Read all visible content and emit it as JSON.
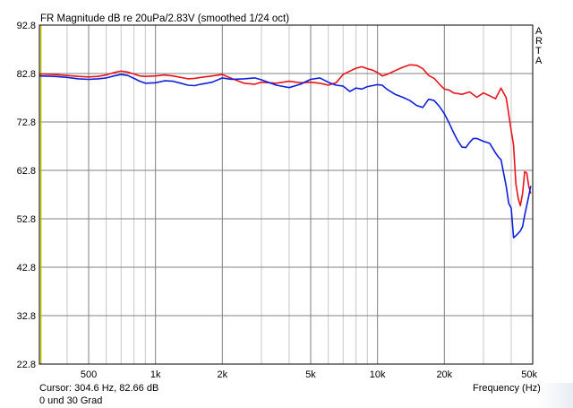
{
  "title": "FR Magnitude dB re 20uPa/2.83V (smoothed 1/24 oct)",
  "cursor_text": "Cursor: 304.6 Hz, 82.66 dB",
  "note_text": "0 und 30 Grad",
  "side_label": [
    "A",
    "R",
    "T",
    "A"
  ],
  "colors": {
    "background": "#ffffff",
    "grid_major": "#808080",
    "grid_minor": "#c8c8c8",
    "series_red": "#e8141a",
    "series_blue": "#1020d8",
    "cursor_line": "#c8c800"
  },
  "chart_data": {
    "type": "line",
    "title": "FR Magnitude dB re 20uPa/2.83V (smoothed 1/24 oct)",
    "xlabel": "Frequency (Hz)",
    "ylabel": "",
    "x_scale": "log",
    "xlim": [
      300,
      50000
    ],
    "ylim": [
      22.8,
      92.8
    ],
    "y_ticks": [
      "92.8",
      "82.8",
      "72.8",
      "62.8",
      "52.8",
      "42.8",
      "32.8",
      "22.8"
    ],
    "x_tick_labels": [
      {
        "value": 500,
        "label": "500"
      },
      {
        "value": 1000,
        "label": "1k"
      },
      {
        "value": 2000,
        "label": "2k"
      },
      {
        "value": 5000,
        "label": "5k"
      },
      {
        "value": 10000,
        "label": "10k"
      },
      {
        "value": 20000,
        "label": "20k"
      },
      {
        "value": 50000,
        "label": "50k"
      }
    ],
    "grid": true,
    "cursor_x": 304.6,
    "series": [
      {
        "color": "#e8141a",
        "points": [
          [
            300,
            82.7
          ],
          [
            350,
            82.6
          ],
          [
            400,
            82.4
          ],
          [
            450,
            82.2
          ],
          [
            500,
            82.1
          ],
          [
            550,
            82.2
          ],
          [
            600,
            82.5
          ],
          [
            650,
            83.0
          ],
          [
            700,
            83.3
          ],
          [
            750,
            83.1
          ],
          [
            800,
            82.7
          ],
          [
            850,
            82.3
          ],
          [
            900,
            82.2
          ],
          [
            1000,
            82.3
          ],
          [
            1100,
            82.5
          ],
          [
            1200,
            82.3
          ],
          [
            1300,
            82.0
          ],
          [
            1400,
            81.7
          ],
          [
            1500,
            81.8
          ],
          [
            1600,
            82.0
          ],
          [
            1800,
            82.3
          ],
          [
            2000,
            82.6
          ],
          [
            2200,
            81.8
          ],
          [
            2500,
            80.8
          ],
          [
            2800,
            80.6
          ],
          [
            3000,
            81.0
          ],
          [
            3500,
            80.8
          ],
          [
            4000,
            81.2
          ],
          [
            4500,
            80.9
          ],
          [
            5000,
            81.0
          ],
          [
            5500,
            80.8
          ],
          [
            6000,
            80.4
          ],
          [
            6500,
            80.9
          ],
          [
            7000,
            82.6
          ],
          [
            7500,
            83.3
          ],
          [
            8000,
            83.9
          ],
          [
            8500,
            84.2
          ],
          [
            9000,
            83.8
          ],
          [
            9500,
            83.5
          ],
          [
            10000,
            83.0
          ],
          [
            10500,
            82.3
          ],
          [
            11000,
            82.6
          ],
          [
            12000,
            83.4
          ],
          [
            13000,
            84.1
          ],
          [
            14000,
            84.6
          ],
          [
            15000,
            84.5
          ],
          [
            16000,
            83.8
          ],
          [
            17000,
            82.4
          ],
          [
            18000,
            81.8
          ],
          [
            19000,
            80.6
          ],
          [
            20000,
            79.6
          ],
          [
            21000,
            79.4
          ],
          [
            22000,
            78.8
          ],
          [
            24000,
            78.5
          ],
          [
            26000,
            79.0
          ],
          [
            28000,
            77.9
          ],
          [
            30000,
            78.8
          ],
          [
            32000,
            78.2
          ],
          [
            34000,
            77.6
          ],
          [
            36000,
            79.8
          ],
          [
            38000,
            77.8
          ],
          [
            40000,
            71.0
          ],
          [
            41000,
            68.0
          ],
          [
            42000,
            60.0
          ],
          [
            43000,
            57.0
          ],
          [
            44000,
            55.5
          ],
          [
            45000,
            58.0
          ],
          [
            46000,
            62.5
          ],
          [
            47000,
            62.3
          ],
          [
            48000,
            59.5
          ],
          [
            49000,
            58.0
          ]
        ]
      },
      {
        "color": "#1020d8",
        "points": [
          [
            300,
            82.3
          ],
          [
            350,
            82.2
          ],
          [
            400,
            82.0
          ],
          [
            450,
            81.7
          ],
          [
            500,
            81.6
          ],
          [
            550,
            81.7
          ],
          [
            600,
            81.9
          ],
          [
            650,
            82.3
          ],
          [
            700,
            82.6
          ],
          [
            750,
            82.4
          ],
          [
            800,
            81.8
          ],
          [
            850,
            81.2
          ],
          [
            900,
            80.8
          ],
          [
            1000,
            80.9
          ],
          [
            1100,
            81.3
          ],
          [
            1200,
            81.2
          ],
          [
            1300,
            80.8
          ],
          [
            1400,
            80.4
          ],
          [
            1500,
            80.3
          ],
          [
            1600,
            80.6
          ],
          [
            1800,
            81.0
          ],
          [
            2000,
            81.9
          ],
          [
            2200,
            81.6
          ],
          [
            2500,
            81.7
          ],
          [
            2800,
            81.9
          ],
          [
            3000,
            81.5
          ],
          [
            3500,
            80.4
          ],
          [
            4000,
            79.9
          ],
          [
            4500,
            80.6
          ],
          [
            5000,
            81.6
          ],
          [
            5500,
            81.9
          ],
          [
            6000,
            81.0
          ],
          [
            6500,
            80.4
          ],
          [
            7000,
            80.2
          ],
          [
            7500,
            79.1
          ],
          [
            8000,
            79.8
          ],
          [
            8500,
            79.6
          ],
          [
            9000,
            80.1
          ],
          [
            10000,
            80.5
          ],
          [
            10500,
            80.4
          ],
          [
            11000,
            79.6
          ],
          [
            12000,
            78.5
          ],
          [
            13000,
            77.9
          ],
          [
            14000,
            77.2
          ],
          [
            15000,
            76.2
          ],
          [
            16000,
            75.8
          ],
          [
            17000,
            77.5
          ],
          [
            18000,
            77.2
          ],
          [
            19000,
            76.0
          ],
          [
            20000,
            74.5
          ],
          [
            21000,
            72.6
          ],
          [
            22000,
            70.6
          ],
          [
            23000,
            68.9
          ],
          [
            24000,
            67.6
          ],
          [
            25000,
            67.5
          ],
          [
            26000,
            68.6
          ],
          [
            27000,
            69.4
          ],
          [
            28000,
            69.4
          ],
          [
            30000,
            68.8
          ],
          [
            32000,
            68.4
          ],
          [
            34000,
            66.4
          ],
          [
            35000,
            65.6
          ],
          [
            36000,
            65.0
          ],
          [
            38000,
            59.5
          ],
          [
            39000,
            56.0
          ],
          [
            40000,
            55.0
          ],
          [
            41000,
            48.9
          ],
          [
            42000,
            49.3
          ],
          [
            43000,
            49.8
          ],
          [
            44000,
            50.3
          ],
          [
            45000,
            51.2
          ],
          [
            46000,
            53.5
          ],
          [
            47000,
            55.5
          ],
          [
            48000,
            57.5
          ],
          [
            49000,
            59.6
          ]
        ]
      }
    ]
  }
}
